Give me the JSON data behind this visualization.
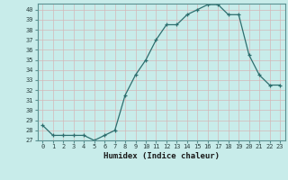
{
  "x": [
    0,
    1,
    2,
    3,
    4,
    5,
    6,
    7,
    8,
    9,
    10,
    11,
    12,
    13,
    14,
    15,
    16,
    17,
    18,
    19,
    20,
    21,
    22,
    23
  ],
  "y": [
    28.5,
    27.5,
    27.5,
    27.5,
    27.5,
    27.0,
    27.5,
    28.0,
    31.5,
    33.5,
    35.0,
    37.0,
    38.5,
    38.5,
    39.5,
    40.0,
    40.5,
    40.5,
    39.5,
    39.5,
    35.5,
    33.5,
    32.5,
    32.5
  ],
  "ylim": [
    27,
    40.5
  ],
  "yticks": [
    27,
    28,
    29,
    30,
    31,
    32,
    33,
    34,
    35,
    36,
    37,
    38,
    39,
    40
  ],
  "xlabel": "Humidex (Indice chaleur)",
  "line_color": "#2d6e6e",
  "marker_color": "#2d6e6e",
  "bg_color": "#c8ecea",
  "grid_color": "#d4b8b8",
  "spine_color": "#5a9090",
  "tick_label_color": "#2d4040",
  "xlabel_color": "#1a1a1a",
  "figsize": [
    3.2,
    2.0
  ],
  "dpi": 100
}
